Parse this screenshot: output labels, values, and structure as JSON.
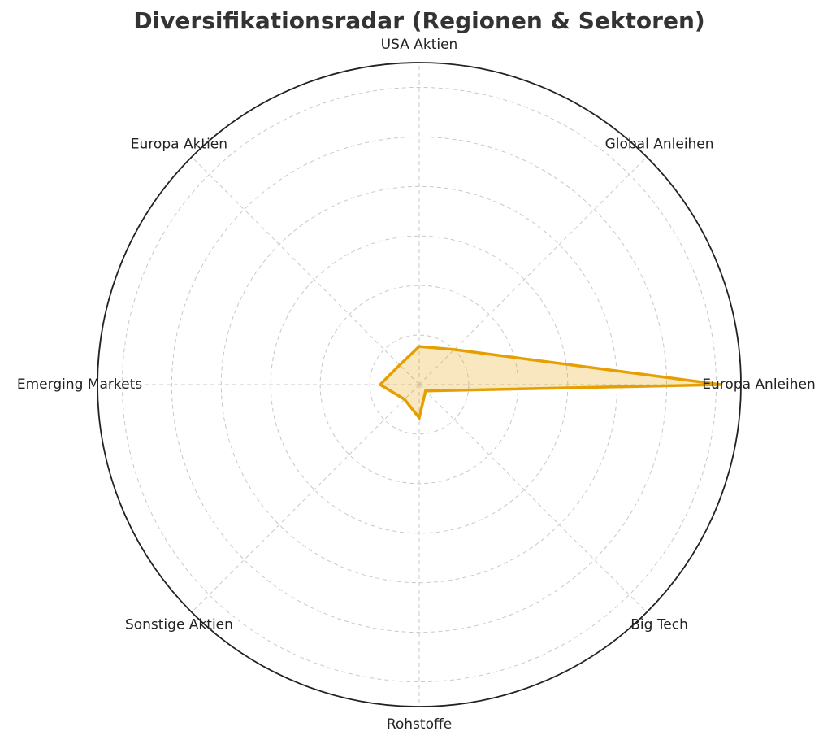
{
  "chart_data": {
    "type": "radar",
    "title": "Diversifikationsradar (Regionen & Sektoren)",
    "categories": [
      "USA Aktien",
      "Global Anleihen",
      "Europa Anleihen",
      "Big Tech",
      "Rohstoffe",
      "Sonstige Aktien",
      "Emerging Markets",
      "Europa Aktien"
    ],
    "values": [
      7.7,
      10,
      61,
      1.8,
      6.7,
      4.2,
      7.9,
      5.6
    ],
    "color": "#e69f00",
    "ylim": [
      0,
      65
    ],
    "yticks": [
      0,
      10,
      20,
      30,
      40,
      50,
      60
    ],
    "grid": true
  }
}
